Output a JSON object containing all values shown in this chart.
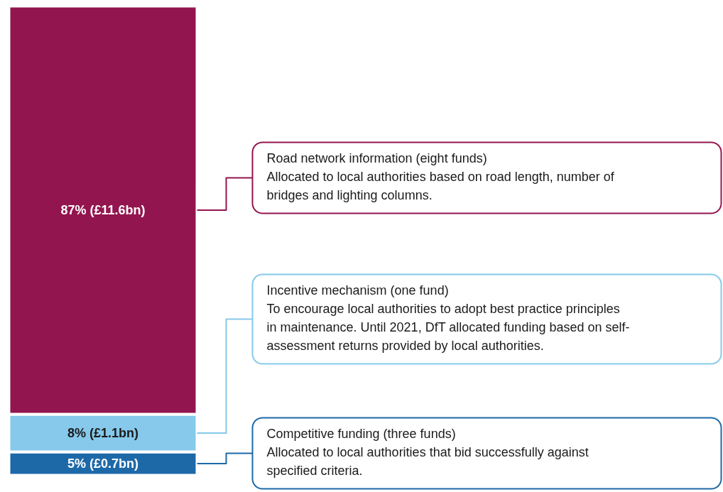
{
  "chart_data": {
    "type": "bar",
    "stacked": true,
    "categories": [
      null
    ],
    "ylim": [
      0,
      100
    ],
    "tick_labels": false,
    "grid": false,
    "series": [
      {
        "name": "Competitive funding (three funds)",
        "color": "#1d69a8",
        "values": [
          5
        ],
        "value_labels": [
          "5% (£0.7bn)"
        ]
      },
      {
        "name": "Incentive mechanism (one fund)",
        "color": "#86c9ea",
        "values": [
          8
        ],
        "value_labels": [
          "8% (£1.1bn)"
        ]
      },
      {
        "name": "Road network information (eight funds)",
        "color": "#93154f",
        "values": [
          87
        ],
        "value_labels": [
          "87% (£11.6bn)"
        ]
      }
    ],
    "annotations": [
      "Allocated to local authorities that bid successfully against specified criteria.",
      "To encourage local authorities to adopt best practice principles in maintenance. Until 2021, DfT allocated funding based on self-assessment returns provided by local authorities.",
      "Allocated to local authorities based on road length, number of bridges and lighting columns."
    ]
  }
}
